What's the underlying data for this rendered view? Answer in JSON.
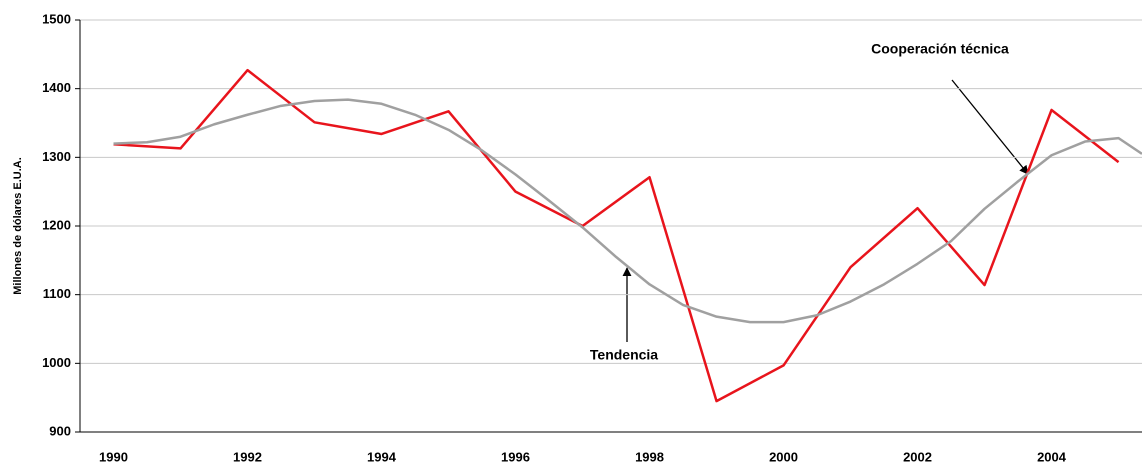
{
  "chart_data": {
    "type": "line",
    "y_label": "Millones de dólares E.U.A.",
    "annotations": [
      "Cooperación técnica",
      "Tendencia"
    ],
    "ylim": [
      900,
      1500
    ],
    "yticks": [
      900,
      1000,
      1100,
      1200,
      1300,
      1400,
      1500
    ],
    "xlim": [
      1989.5,
      2005.35
    ],
    "xticks": [
      1990,
      1992,
      1994,
      1996,
      1998,
      2000,
      2002,
      2004
    ],
    "grid": true,
    "series": [
      {
        "color": "#e8141c",
        "x": [
          1990,
          1991,
          1992,
          1993,
          1994,
          1995,
          1996,
          1997,
          1998,
          1999,
          2000,
          2001,
          2002,
          2003,
          2004,
          2005
        ],
        "values": [
          1319,
          1313,
          1427,
          1351,
          1334,
          1367,
          1250,
          1200,
          1271,
          945,
          997,
          1140,
          1226,
          1114,
          1369,
          1293
        ]
      },
      {
        "color": "#a0a0a0",
        "x": [
          1990,
          1990.5,
          1991,
          1991.5,
          1992,
          1992.5,
          1993,
          1993.5,
          1994,
          1994.5,
          1995,
          1995.5,
          1996,
          1996.5,
          1997,
          1997.5,
          1998,
          1998.5,
          1999,
          1999.5,
          2000,
          2000.5,
          2001,
          2001.5,
          2002,
          2002.5,
          2003,
          2003.5,
          2004,
          2004.5,
          2005,
          2005.35
        ],
        "values": [
          1320,
          1322,
          1330,
          1348,
          1362,
          1375,
          1382,
          1384,
          1378,
          1362,
          1340,
          1310,
          1275,
          1237,
          1198,
          1155,
          1115,
          1085,
          1068,
          1060,
          1060,
          1070,
          1090,
          1115,
          1145,
          1178,
          1225,
          1265,
          1303,
          1323,
          1328,
          1305
        ]
      }
    ]
  }
}
